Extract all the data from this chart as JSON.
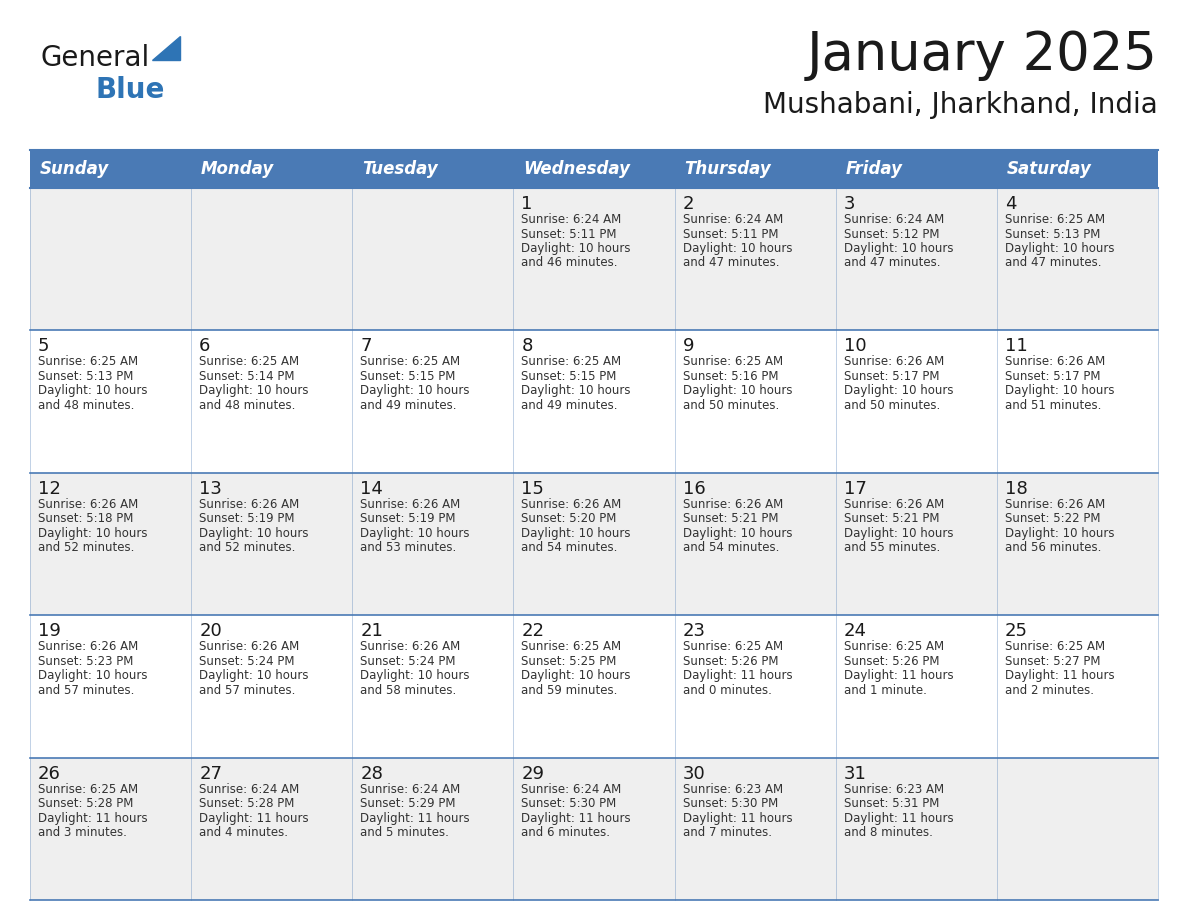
{
  "title": "January 2025",
  "subtitle": "Mushabani, Jharkhand, India",
  "header_color": "#4a7ab5",
  "header_text_color": "#ffffff",
  "day_names": [
    "Sunday",
    "Monday",
    "Tuesday",
    "Wednesday",
    "Thursday",
    "Friday",
    "Saturday"
  ],
  "bg_color": "#ffffff",
  "cell_bg_even": "#efefef",
  "cell_bg_odd": "#ffffff",
  "text_color": "#1a1a1a",
  "line_color": "#4a7ab5",
  "logo_general_color": "#1a1a1a",
  "logo_blue_color": "#2e74b5",
  "logo_triangle_color": "#2e74b5",
  "days": [
    {
      "day": 1,
      "col": 3,
      "row": 0,
      "sunrise": "6:24 AM",
      "sunset": "5:11 PM",
      "daylight_line1": "Daylight: 10 hours",
      "daylight_line2": "and 46 minutes."
    },
    {
      "day": 2,
      "col": 4,
      "row": 0,
      "sunrise": "6:24 AM",
      "sunset": "5:11 PM",
      "daylight_line1": "Daylight: 10 hours",
      "daylight_line2": "and 47 minutes."
    },
    {
      "day": 3,
      "col": 5,
      "row": 0,
      "sunrise": "6:24 AM",
      "sunset": "5:12 PM",
      "daylight_line1": "Daylight: 10 hours",
      "daylight_line2": "and 47 minutes."
    },
    {
      "day": 4,
      "col": 6,
      "row": 0,
      "sunrise": "6:25 AM",
      "sunset": "5:13 PM",
      "daylight_line1": "Daylight: 10 hours",
      "daylight_line2": "and 47 minutes."
    },
    {
      "day": 5,
      "col": 0,
      "row": 1,
      "sunrise": "6:25 AM",
      "sunset": "5:13 PM",
      "daylight_line1": "Daylight: 10 hours",
      "daylight_line2": "and 48 minutes."
    },
    {
      "day": 6,
      "col": 1,
      "row": 1,
      "sunrise": "6:25 AM",
      "sunset": "5:14 PM",
      "daylight_line1": "Daylight: 10 hours",
      "daylight_line2": "and 48 minutes."
    },
    {
      "day": 7,
      "col": 2,
      "row": 1,
      "sunrise": "6:25 AM",
      "sunset": "5:15 PM",
      "daylight_line1": "Daylight: 10 hours",
      "daylight_line2": "and 49 minutes."
    },
    {
      "day": 8,
      "col": 3,
      "row": 1,
      "sunrise": "6:25 AM",
      "sunset": "5:15 PM",
      "daylight_line1": "Daylight: 10 hours",
      "daylight_line2": "and 49 minutes."
    },
    {
      "day": 9,
      "col": 4,
      "row": 1,
      "sunrise": "6:25 AM",
      "sunset": "5:16 PM",
      "daylight_line1": "Daylight: 10 hours",
      "daylight_line2": "and 50 minutes."
    },
    {
      "day": 10,
      "col": 5,
      "row": 1,
      "sunrise": "6:26 AM",
      "sunset": "5:17 PM",
      "daylight_line1": "Daylight: 10 hours",
      "daylight_line2": "and 50 minutes."
    },
    {
      "day": 11,
      "col": 6,
      "row": 1,
      "sunrise": "6:26 AM",
      "sunset": "5:17 PM",
      "daylight_line1": "Daylight: 10 hours",
      "daylight_line2": "and 51 minutes."
    },
    {
      "day": 12,
      "col": 0,
      "row": 2,
      "sunrise": "6:26 AM",
      "sunset": "5:18 PM",
      "daylight_line1": "Daylight: 10 hours",
      "daylight_line2": "and 52 minutes."
    },
    {
      "day": 13,
      "col": 1,
      "row": 2,
      "sunrise": "6:26 AM",
      "sunset": "5:19 PM",
      "daylight_line1": "Daylight: 10 hours",
      "daylight_line2": "and 52 minutes."
    },
    {
      "day": 14,
      "col": 2,
      "row": 2,
      "sunrise": "6:26 AM",
      "sunset": "5:19 PM",
      "daylight_line1": "Daylight: 10 hours",
      "daylight_line2": "and 53 minutes."
    },
    {
      "day": 15,
      "col": 3,
      "row": 2,
      "sunrise": "6:26 AM",
      "sunset": "5:20 PM",
      "daylight_line1": "Daylight: 10 hours",
      "daylight_line2": "and 54 minutes."
    },
    {
      "day": 16,
      "col": 4,
      "row": 2,
      "sunrise": "6:26 AM",
      "sunset": "5:21 PM",
      "daylight_line1": "Daylight: 10 hours",
      "daylight_line2": "and 54 minutes."
    },
    {
      "day": 17,
      "col": 5,
      "row": 2,
      "sunrise": "6:26 AM",
      "sunset": "5:21 PM",
      "daylight_line1": "Daylight: 10 hours",
      "daylight_line2": "and 55 minutes."
    },
    {
      "day": 18,
      "col": 6,
      "row": 2,
      "sunrise": "6:26 AM",
      "sunset": "5:22 PM",
      "daylight_line1": "Daylight: 10 hours",
      "daylight_line2": "and 56 minutes."
    },
    {
      "day": 19,
      "col": 0,
      "row": 3,
      "sunrise": "6:26 AM",
      "sunset": "5:23 PM",
      "daylight_line1": "Daylight: 10 hours",
      "daylight_line2": "and 57 minutes."
    },
    {
      "day": 20,
      "col": 1,
      "row": 3,
      "sunrise": "6:26 AM",
      "sunset": "5:24 PM",
      "daylight_line1": "Daylight: 10 hours",
      "daylight_line2": "and 57 minutes."
    },
    {
      "day": 21,
      "col": 2,
      "row": 3,
      "sunrise": "6:26 AM",
      "sunset": "5:24 PM",
      "daylight_line1": "Daylight: 10 hours",
      "daylight_line2": "and 58 minutes."
    },
    {
      "day": 22,
      "col": 3,
      "row": 3,
      "sunrise": "6:25 AM",
      "sunset": "5:25 PM",
      "daylight_line1": "Daylight: 10 hours",
      "daylight_line2": "and 59 minutes."
    },
    {
      "day": 23,
      "col": 4,
      "row": 3,
      "sunrise": "6:25 AM",
      "sunset": "5:26 PM",
      "daylight_line1": "Daylight: 11 hours",
      "daylight_line2": "and 0 minutes."
    },
    {
      "day": 24,
      "col": 5,
      "row": 3,
      "sunrise": "6:25 AM",
      "sunset": "5:26 PM",
      "daylight_line1": "Daylight: 11 hours",
      "daylight_line2": "and 1 minute."
    },
    {
      "day": 25,
      "col": 6,
      "row": 3,
      "sunrise": "6:25 AM",
      "sunset": "5:27 PM",
      "daylight_line1": "Daylight: 11 hours",
      "daylight_line2": "and 2 minutes."
    },
    {
      "day": 26,
      "col": 0,
      "row": 4,
      "sunrise": "6:25 AM",
      "sunset": "5:28 PM",
      "daylight_line1": "Daylight: 11 hours",
      "daylight_line2": "and 3 minutes."
    },
    {
      "day": 27,
      "col": 1,
      "row": 4,
      "sunrise": "6:24 AM",
      "sunset": "5:28 PM",
      "daylight_line1": "Daylight: 11 hours",
      "daylight_line2": "and 4 minutes."
    },
    {
      "day": 28,
      "col": 2,
      "row": 4,
      "sunrise": "6:24 AM",
      "sunset": "5:29 PM",
      "daylight_line1": "Daylight: 11 hours",
      "daylight_line2": "and 5 minutes."
    },
    {
      "day": 29,
      "col": 3,
      "row": 4,
      "sunrise": "6:24 AM",
      "sunset": "5:30 PM",
      "daylight_line1": "Daylight: 11 hours",
      "daylight_line2": "and 6 minutes."
    },
    {
      "day": 30,
      "col": 4,
      "row": 4,
      "sunrise": "6:23 AM",
      "sunset": "5:30 PM",
      "daylight_line1": "Daylight: 11 hours",
      "daylight_line2": "and 7 minutes."
    },
    {
      "day": 31,
      "col": 5,
      "row": 4,
      "sunrise": "6:23 AM",
      "sunset": "5:31 PM",
      "daylight_line1": "Daylight: 11 hours",
      "daylight_line2": "and 8 minutes."
    }
  ]
}
